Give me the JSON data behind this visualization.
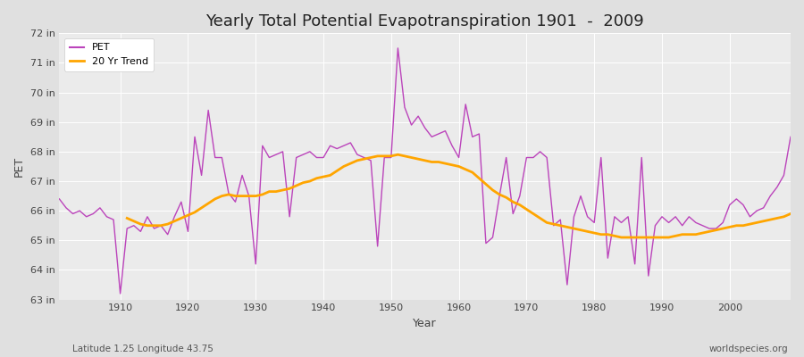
{
  "title": "Yearly Total Potential Evapotranspiration 1901  -  2009",
  "xlabel": "Year",
  "ylabel": "PET",
  "subtitle": "Latitude 1.25 Longitude 43.75",
  "watermark": "worldspecies.org",
  "pet_color": "#BB44BB",
  "trend_color": "#FFA500",
  "fig_bg_color": "#E0E0E0",
  "plot_bg_color": "#EBEBEB",
  "grid_color": "#FFFFFF",
  "years": [
    1901,
    1902,
    1903,
    1904,
    1905,
    1906,
    1907,
    1908,
    1909,
    1910,
    1911,
    1912,
    1913,
    1914,
    1915,
    1916,
    1917,
    1918,
    1919,
    1920,
    1921,
    1922,
    1923,
    1924,
    1925,
    1926,
    1927,
    1928,
    1929,
    1930,
    1931,
    1932,
    1933,
    1934,
    1935,
    1936,
    1937,
    1938,
    1939,
    1940,
    1941,
    1942,
    1943,
    1944,
    1945,
    1946,
    1947,
    1948,
    1949,
    1950,
    1951,
    1952,
    1953,
    1954,
    1955,
    1956,
    1957,
    1958,
    1959,
    1960,
    1961,
    1962,
    1963,
    1964,
    1965,
    1966,
    1967,
    1968,
    1969,
    1970,
    1971,
    1972,
    1973,
    1974,
    1975,
    1976,
    1977,
    1978,
    1979,
    1980,
    1981,
    1982,
    1983,
    1984,
    1985,
    1986,
    1987,
    1988,
    1989,
    1990,
    1991,
    1992,
    1993,
    1994,
    1995,
    1996,
    1997,
    1998,
    1999,
    2000,
    2001,
    2002,
    2003,
    2004,
    2005,
    2006,
    2007,
    2008,
    2009
  ],
  "pet_values": [
    66.4,
    66.1,
    65.9,
    66.0,
    65.8,
    65.9,
    66.1,
    65.8,
    65.7,
    63.2,
    65.4,
    65.5,
    65.3,
    65.8,
    65.4,
    65.5,
    65.2,
    65.8,
    66.3,
    65.3,
    68.5,
    67.2,
    69.4,
    67.8,
    67.8,
    66.6,
    66.3,
    67.2,
    66.5,
    64.2,
    68.2,
    67.8,
    67.9,
    68.0,
    65.8,
    67.8,
    67.9,
    68.0,
    67.8,
    67.8,
    68.2,
    68.1,
    68.2,
    68.3,
    67.9,
    67.8,
    67.7,
    64.8,
    67.8,
    67.8,
    71.5,
    69.5,
    68.9,
    69.2,
    68.8,
    68.5,
    68.6,
    68.7,
    68.2,
    67.8,
    69.6,
    68.5,
    68.6,
    64.9,
    65.1,
    66.5,
    67.8,
    65.9,
    66.5,
    67.8,
    67.8,
    68.0,
    67.8,
    65.5,
    65.7,
    63.5,
    65.8,
    66.5,
    65.8,
    65.6,
    67.8,
    64.4,
    65.8,
    65.6,
    65.8,
    64.2,
    67.8,
    63.8,
    65.5,
    65.8,
    65.6,
    65.8,
    65.5,
    65.8,
    65.6,
    65.5,
    65.4,
    65.4,
    65.6,
    66.2,
    66.4,
    66.2,
    65.8,
    66.0,
    66.1,
    66.5,
    66.8,
    67.2,
    68.5
  ],
  "trend_values": [
    null,
    null,
    null,
    null,
    null,
    null,
    null,
    null,
    null,
    null,
    65.75,
    65.65,
    65.55,
    65.5,
    65.5,
    65.5,
    65.55,
    65.65,
    65.75,
    65.85,
    65.95,
    66.1,
    66.25,
    66.4,
    66.5,
    66.55,
    66.5,
    66.5,
    66.5,
    66.5,
    66.55,
    66.65,
    66.65,
    66.7,
    66.75,
    66.85,
    66.95,
    67.0,
    67.1,
    67.15,
    67.2,
    67.35,
    67.5,
    67.6,
    67.7,
    67.75,
    67.8,
    67.85,
    67.85,
    67.85,
    67.9,
    67.85,
    67.8,
    67.75,
    67.7,
    67.65,
    67.65,
    67.6,
    67.55,
    67.5,
    67.4,
    67.3,
    67.1,
    66.9,
    66.7,
    66.55,
    66.45,
    66.3,
    66.2,
    66.05,
    65.9,
    65.75,
    65.6,
    65.55,
    65.5,
    65.45,
    65.4,
    65.35,
    65.3,
    65.25,
    65.2,
    65.2,
    65.15,
    65.1,
    65.1,
    65.1,
    65.1,
    65.1,
    65.1,
    65.1,
    65.1,
    65.15,
    65.2,
    65.2,
    65.2,
    65.25,
    65.3,
    65.35,
    65.4,
    65.45,
    65.5,
    65.5,
    65.55,
    65.6,
    65.65,
    65.7,
    65.75,
    65.8,
    65.9
  ],
  "ylim": [
    63.0,
    72.0
  ],
  "yticks": [
    63,
    64,
    65,
    66,
    67,
    68,
    69,
    70,
    71,
    72
  ],
  "ytick_labels": [
    "63 in",
    "64 in",
    "65 in",
    "66 in",
    "67 in",
    "68 in",
    "69 in",
    "70 in",
    "71 in",
    "72 in"
  ],
  "xticks": [
    1910,
    1920,
    1930,
    1940,
    1950,
    1960,
    1970,
    1980,
    1990,
    2000
  ],
  "legend_pet_label": "PET",
  "legend_trend_label": "20 Yr Trend",
  "title_fontsize": 13,
  "axis_label_fontsize": 9,
  "tick_fontsize": 8,
  "legend_fontsize": 8
}
